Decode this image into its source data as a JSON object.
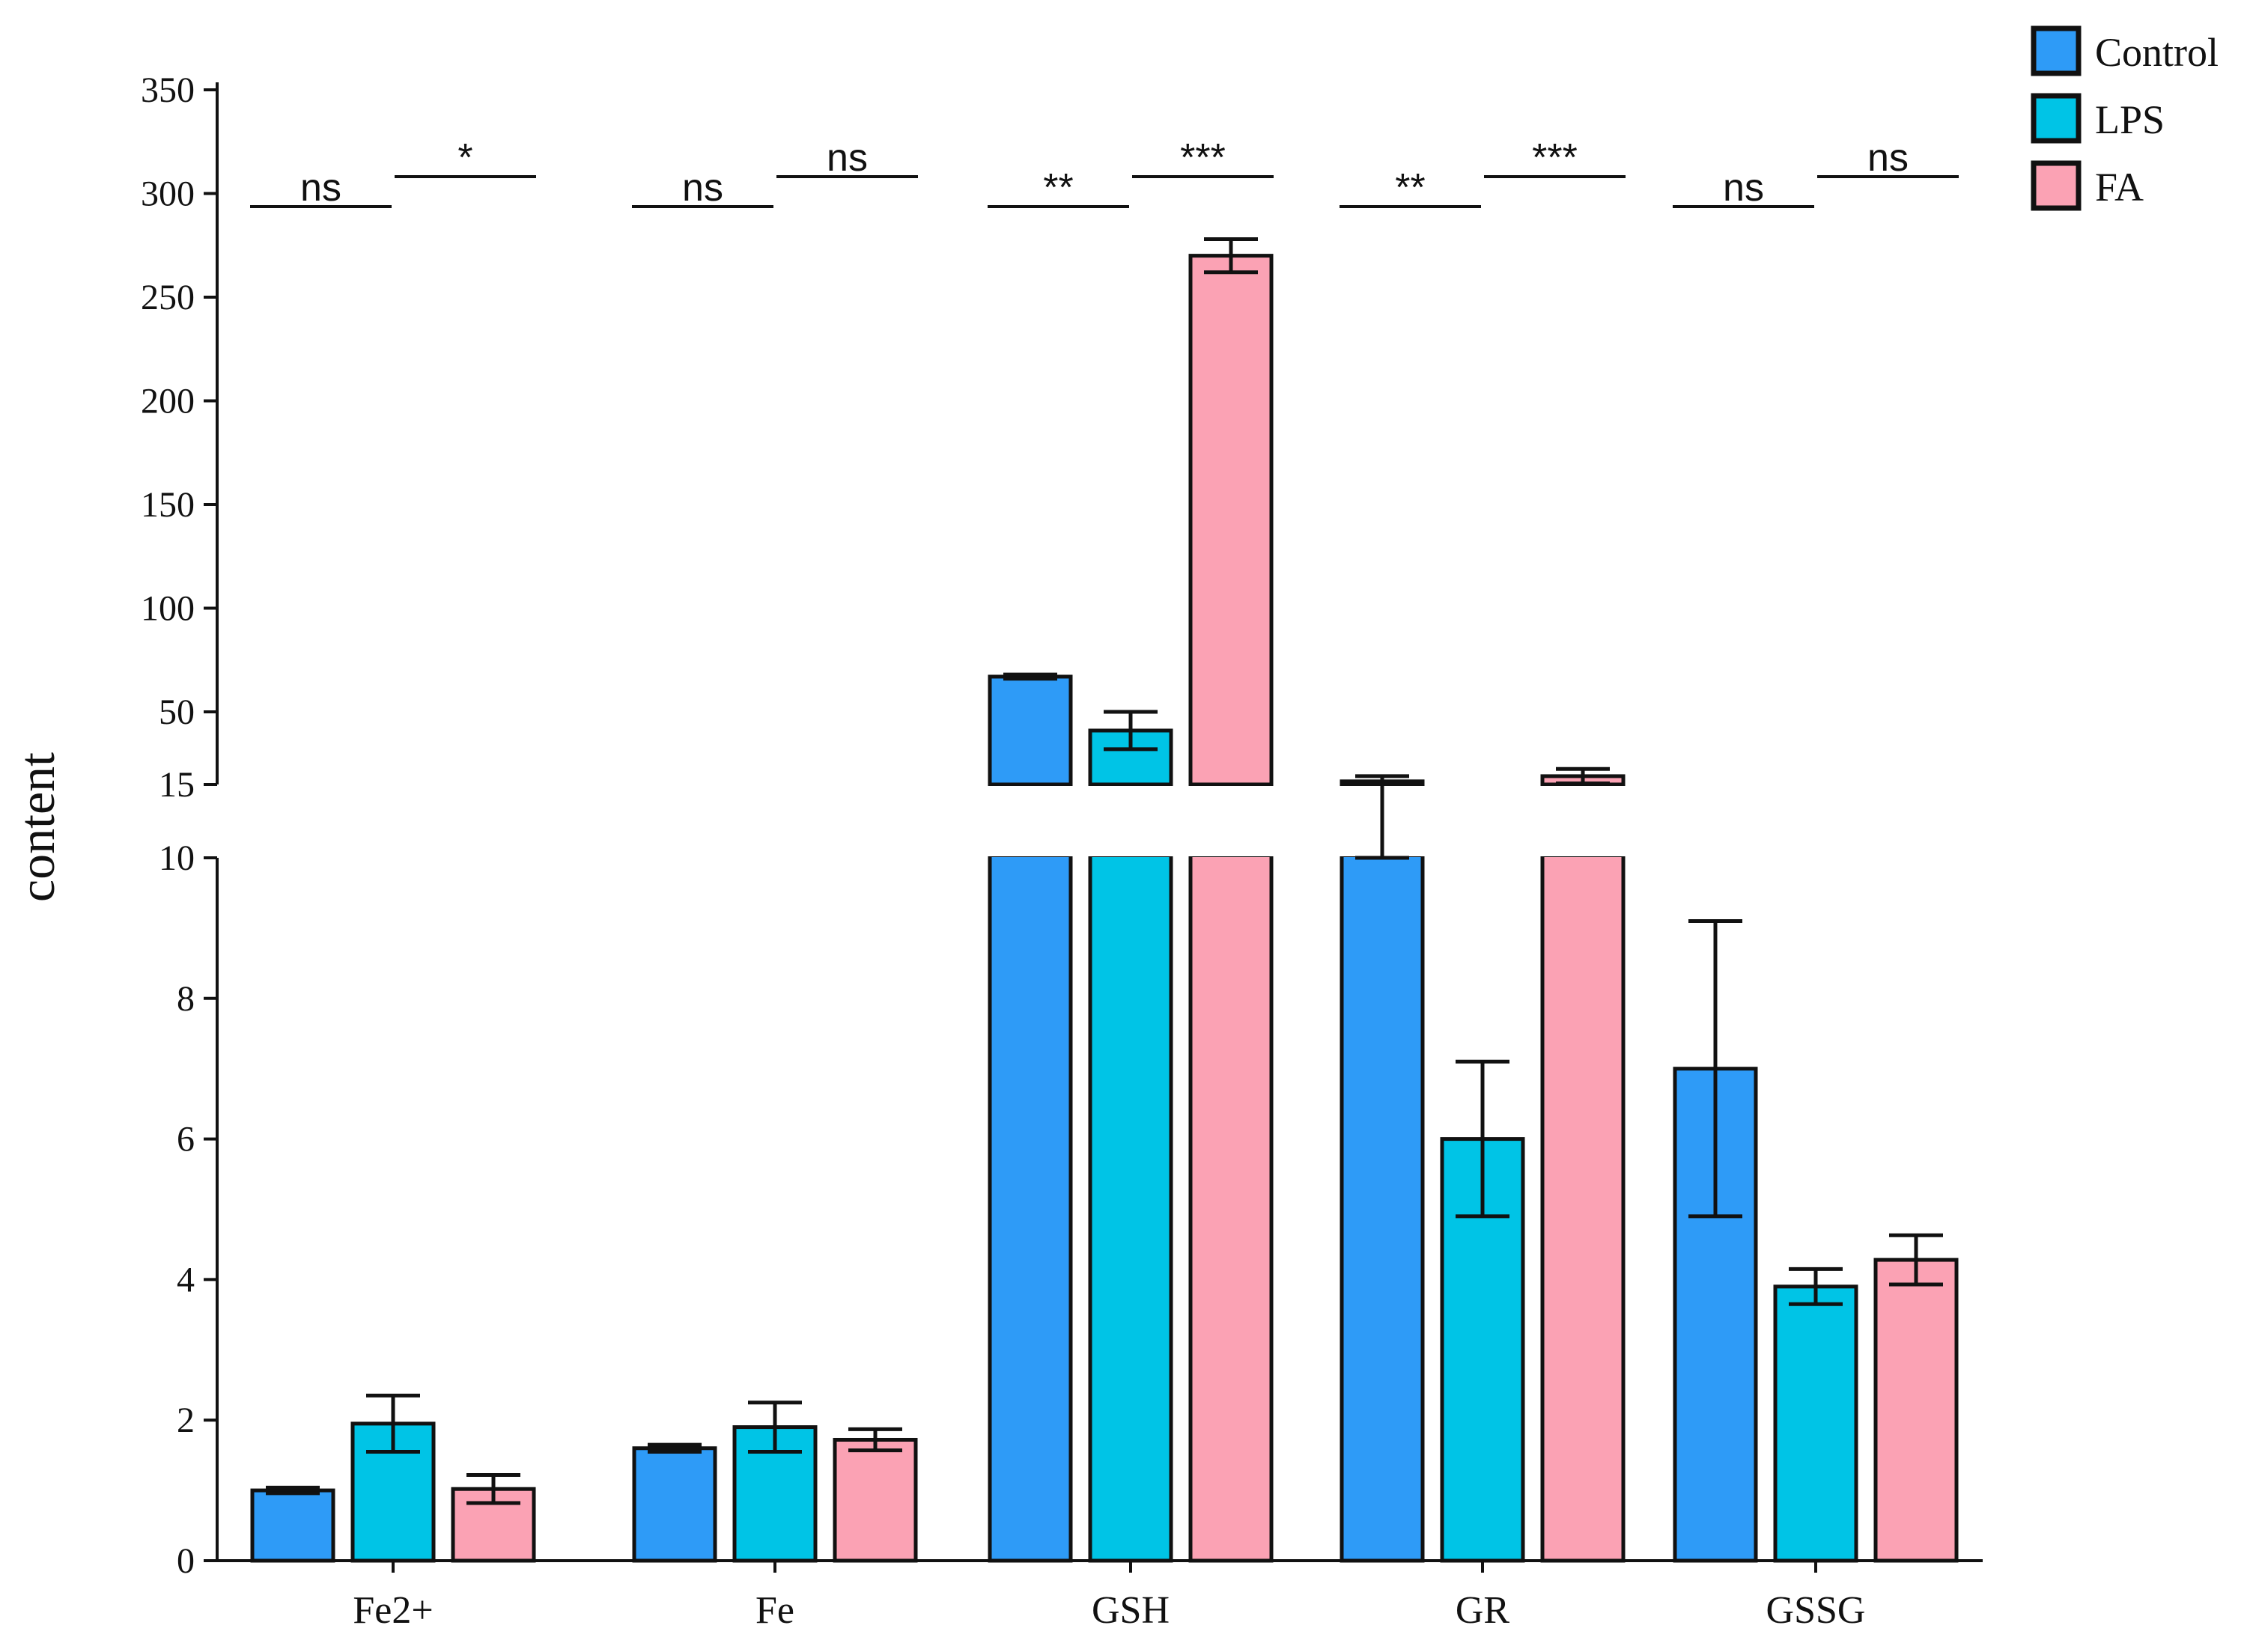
{
  "chart_data": {
    "type": "bar",
    "ylabel": "content",
    "categories": [
      "Fe2+",
      "Fe",
      "GSH",
      "GR",
      "GSSG"
    ],
    "colors": {
      "Control": "#2e9bf7",
      "LPS": "#00c4e6",
      "FA": "#fba2b4"
    },
    "series": [
      {
        "name": "Control",
        "values": [
          1.0,
          1.6,
          67,
          16.5,
          7.0
        ],
        "errors": [
          0.04,
          0.05,
          1,
          2.5,
          2.1
        ]
      },
      {
        "name": "LPS",
        "values": [
          1.95,
          1.9,
          41,
          6.0,
          3.9
        ],
        "errors": [
          0.4,
          0.35,
          9,
          1.1,
          0.25
        ]
      },
      {
        "name": "FA",
        "values": [
          1.02,
          1.72,
          270,
          19,
          4.28
        ],
        "errors": [
          0.2,
          0.15,
          8,
          3.5,
          0.35
        ]
      }
    ],
    "axis": {
      "lower_range": [
        0,
        10
      ],
      "lower_ticks": [
        "0",
        "2",
        "4",
        "6",
        "8",
        "10"
      ],
      "upper_range": [
        15,
        350
      ],
      "upper_ticks": [
        "15",
        "50",
        "100",
        "150",
        "200",
        "250",
        "300",
        "350"
      ]
    },
    "significance": [
      [
        "ns",
        "*"
      ],
      [
        "ns",
        "ns"
      ],
      [
        "**",
        "***"
      ],
      [
        "**",
        "***"
      ],
      [
        "ns",
        "ns"
      ]
    ]
  }
}
